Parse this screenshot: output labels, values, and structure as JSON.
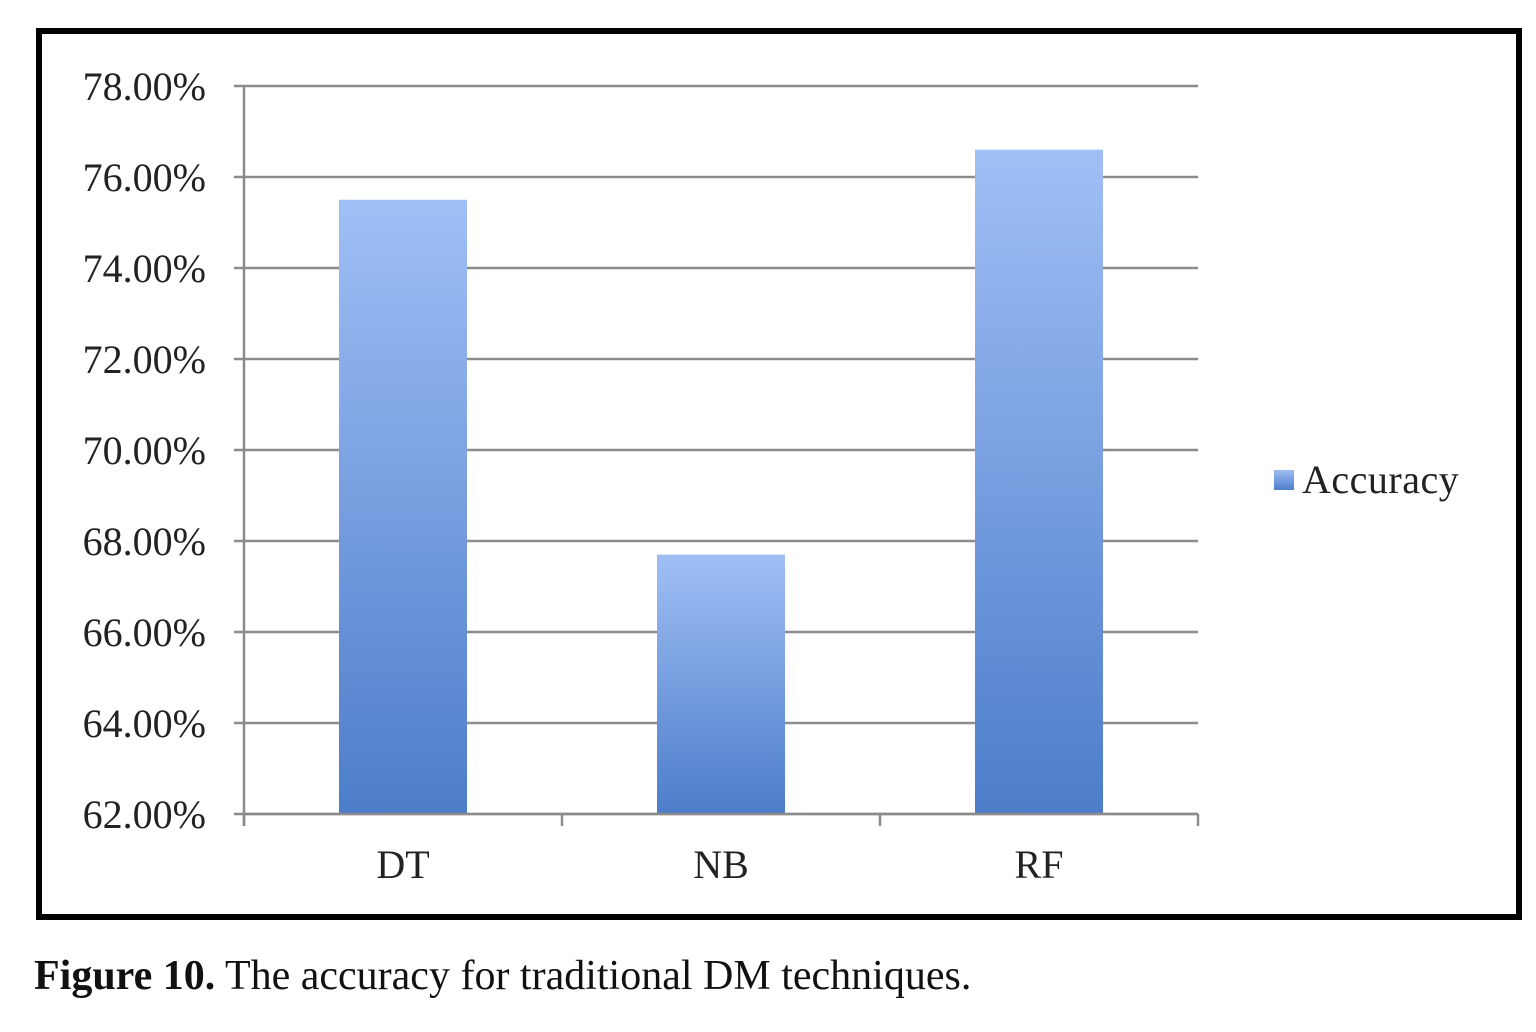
{
  "chart_data": {
    "type": "bar",
    "categories": [
      "DT",
      "NB",
      "RF"
    ],
    "series": [
      {
        "name": "Accuracy",
        "values": [
          75.5,
          67.7,
          76.6
        ]
      }
    ],
    "ylim": [
      62,
      78
    ],
    "yticks": [
      "62.00%",
      "64.00%",
      "66.00%",
      "68.00%",
      "70.00%",
      "72.00%",
      "74.00%",
      "76.00%",
      "78.00%"
    ],
    "ytick_values": [
      62,
      64,
      66,
      68,
      70,
      72,
      74,
      76,
      78
    ],
    "grid": true,
    "legend_position": "right",
    "bar_color_top": "#a0bff5",
    "bar_color_bottom": "#4d7dca"
  },
  "caption": {
    "label": "Figure 10.",
    "text": " The accuracy for traditional DM techniques."
  }
}
